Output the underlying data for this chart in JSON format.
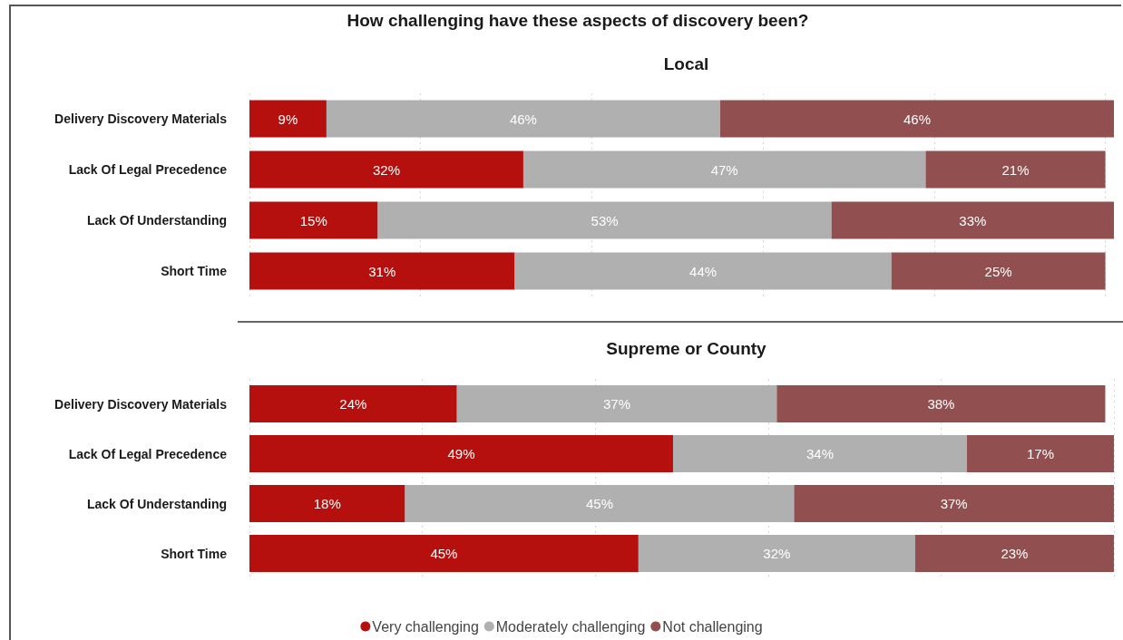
{
  "chart_data": [
    {
      "type": "bar",
      "title": "How challenging have these aspects of discovery been?",
      "subtitle": "Local",
      "orientation": "horizontal",
      "stacked": true,
      "categories": [
        "Delivery Discovery Materials",
        "Lack Of Legal Precedence",
        "Lack Of Understanding",
        "Short Time"
      ],
      "series": [
        {
          "color": "#b5100e",
          "values": [
            9,
            32,
            15,
            31
          ],
          "value_labels": [
            "9%",
            "32%",
            "15%",
            "31%"
          ]
        },
        {
          "color": "#b0b0b0",
          "values": [
            46,
            47,
            53,
            44
          ],
          "value_labels": [
            "46%",
            "47%",
            "53%",
            "44%"
          ]
        },
        {
          "color": "#924f50",
          "values": [
            46,
            21,
            33,
            25
          ],
          "value_labels": [
            "46%",
            "21%",
            "33%",
            "25%"
          ]
        }
      ],
      "xlim": [
        0,
        101
      ],
      "xticks": [
        {
          "value": 0,
          "label": null
        },
        {
          "value": 20,
          "label": null
        },
        {
          "value": 40,
          "label": null
        },
        {
          "value": 60,
          "label": null
        },
        {
          "value": 80,
          "label": null
        },
        {
          "value": 100,
          "label": null
        }
      ],
      "tick_labels": "y",
      "grid": "x"
    },
    {
      "type": "bar",
      "title": "Supreme or County",
      "orientation": "horizontal",
      "stacked": true,
      "categories": [
        "Delivery Discovery Materials",
        "Lack Of Legal Precedence",
        "Lack Of Understanding",
        "Short Time"
      ],
      "series": [
        {
          "name": "Very challenging",
          "color": "#b5100e",
          "values": [
            24,
            49,
            18,
            45
          ],
          "value_labels": [
            "24%",
            "49%",
            "18%",
            "45%"
          ]
        },
        {
          "name": "Moderately challenging",
          "color": "#b0b0b0",
          "values": [
            37,
            34,
            45,
            32
          ],
          "value_labels": [
            "37%",
            "34%",
            "45%",
            "32%"
          ]
        },
        {
          "name": "Not challenging",
          "color": "#924f50",
          "values": [
            38,
            17,
            37,
            23
          ],
          "value_labels": [
            "38%",
            "17%",
            "37%",
            "23%"
          ]
        }
      ],
      "xlim": [
        0,
        100
      ],
      "xticks": [
        {
          "value": 0,
          "label": null
        },
        {
          "value": 20,
          "label": null
        },
        {
          "value": 40,
          "label": null
        },
        {
          "value": 60,
          "label": null
        },
        {
          "value": 80,
          "label": null
        },
        {
          "value": 100,
          "label": null
        }
      ],
      "tick_labels": "y",
      "grid": "x",
      "legend": "bottom"
    }
  ]
}
